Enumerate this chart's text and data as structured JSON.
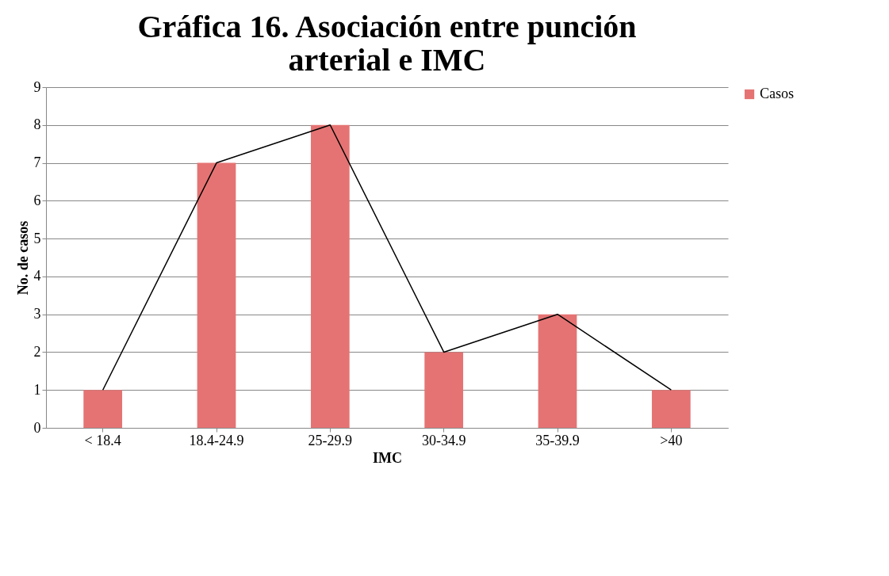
{
  "chart_data": {
    "type": "bar",
    "title": "Gráfica 16. Asociación entre punción arterial e IMC",
    "xlabel": "IMC",
    "ylabel": "No. de casos",
    "categories": [
      "< 18.4",
      "18.4-24.9",
      "25-29.9",
      "30-34.9",
      "35-39.9",
      ">40"
    ],
    "series": [
      {
        "name": "Casos",
        "color": "#e57373",
        "values": [
          1,
          7,
          8,
          2,
          3,
          1
        ]
      },
      {
        "type": "line",
        "color": "#000000",
        "values": [
          1,
          7,
          8,
          2,
          3,
          1
        ]
      }
    ],
    "ylim": [
      0,
      9
    ],
    "yticks": [
      0,
      1,
      2,
      3,
      4,
      5,
      6,
      7,
      8,
      9
    ],
    "grid": "y",
    "legend": "right"
  }
}
